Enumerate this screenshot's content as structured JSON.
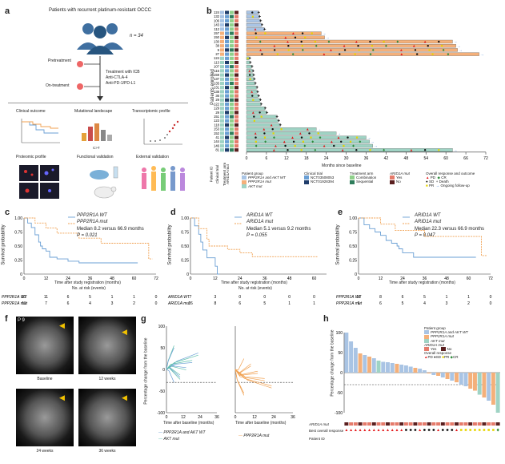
{
  "panels": {
    "a": {
      "label": "a",
      "cohort_text": "Patients with recurrent platinum-resistant OCCC",
      "n_text": "n = 34",
      "pretreatment": "Pretreatment",
      "on_treatment": "On-treatment",
      "treatment_text": [
        "Treatment with ICB",
        "Anti-CTLA-4",
        "Anti-PD-1/PD-L1"
      ],
      "boxes": [
        "Clinical outcome",
        "Mutational landscape",
        "Transcriptomic profile",
        "Proteomic profile",
        "Functional validation",
        "External validation"
      ],
      "mutational_label": "C>T"
    },
    "b": {
      "label": "b",
      "y_axis_title": "Patients enrolled",
      "x_axis_title": "Months since baseline",
      "x_ticks": [
        "0",
        "6",
        "12",
        "18",
        "24",
        "30",
        "36",
        "42",
        "48",
        "54",
        "60",
        "66",
        "72"
      ],
      "column_labels": [
        "Patient ID",
        "Clinical trial",
        "Treatment arm",
        "ARID1A mut"
      ],
      "patients": [
        {
          "id": "124",
          "months": 3.5,
          "group": "wt"
        },
        {
          "id": "132",
          "months": 3.8,
          "group": "wt"
        },
        {
          "id": "106",
          "months": 4.1,
          "group": "wt"
        },
        {
          "id": "143",
          "months": 4.5,
          "group": "wt"
        },
        {
          "id": "112",
          "months": 5.3,
          "group": "wt"
        },
        {
          "id": "157",
          "months": 22.5,
          "group": "ppp"
        },
        {
          "id": "150",
          "months": 23.5,
          "group": "ppp"
        },
        {
          "id": "130",
          "months": 62,
          "group": "ppp"
        },
        {
          "id": "38",
          "months": 63,
          "group": "ppp"
        },
        {
          "id": "9",
          "months": 63.5,
          "group": "ppp"
        },
        {
          "id": "27",
          "months": 70,
          "group": "ppp"
        },
        {
          "id": "124",
          "months": 0.8,
          "group": "akt"
        },
        {
          "id": "113",
          "months": 1.0,
          "group": "akt"
        },
        {
          "id": "107",
          "months": 1.5,
          "group": "akt"
        },
        {
          "id": "115",
          "months": 1.8,
          "group": "akt"
        },
        {
          "id": "159",
          "months": 2.0,
          "group": "akt"
        },
        {
          "id": "137",
          "months": 2.2,
          "group": "akt"
        },
        {
          "id": "135",
          "months": 2.5,
          "group": "akt"
        },
        {
          "id": "131",
          "months": 3.0,
          "group": "akt"
        },
        {
          "id": "138",
          "months": 3.2,
          "group": "akt"
        },
        {
          "id": "36",
          "months": 3.5,
          "group": "akt"
        },
        {
          "id": "29",
          "months": 4.0,
          "group": "akt"
        },
        {
          "id": "122",
          "months": 4.3,
          "group": "akt"
        },
        {
          "id": "129",
          "months": 5.5,
          "group": "akt"
        },
        {
          "id": "29",
          "months": 6.0,
          "group": "akt"
        },
        {
          "id": "151",
          "months": 9.0,
          "group": "akt"
        },
        {
          "id": "123",
          "months": 9.5,
          "group": "akt"
        },
        {
          "id": "118",
          "months": 10.0,
          "group": "akt"
        },
        {
          "id": "153",
          "months": 21.0,
          "group": "akt"
        },
        {
          "id": "152",
          "months": 27.0,
          "group": "akt"
        },
        {
          "id": "41",
          "months": 36.0,
          "group": "akt"
        },
        {
          "id": "144",
          "months": 37.0,
          "group": "akt"
        },
        {
          "id": "146",
          "months": 38.0,
          "group": "akt"
        },
        {
          "id": "81",
          "months": 62.0,
          "group": "akt"
        }
      ],
      "legend": {
        "patient_group_title": "Patient group",
        "patient_groups": [
          "PPP2R1A and AKT WT",
          "PPP2R1A mut",
          "AKT mut"
        ],
        "clinical_trial_title": "Clinical trial",
        "clinical_trials": [
          "NCT03508053",
          "NCT01928394"
        ],
        "treatment_arm_title": "Treatment arm",
        "treatment_arms": [
          "Combination",
          "Sequential"
        ],
        "arid_title": "ARID1A mut",
        "arid": [
          "Yes",
          "No"
        ],
        "response_title": "Overall response and outcome",
        "responses": [
          "PD",
          "SD",
          "PR",
          "CR",
          "Death",
          "Ongoing follow-up"
        ]
      },
      "colors": {
        "wt": "#a9c4e4",
        "ppp": "#f4b07a",
        "akt": "#9fd3c4",
        "pd": "#e41a1c",
        "sd": "#111111",
        "pr": "#e6d400",
        "cr": "#2e8b3a"
      }
    },
    "c": {
      "label": "c",
      "legend": [
        "PPP2R1A WT",
        "PPP2R1A mut"
      ],
      "stats": [
        "Median 8.2 versus 66.9 months",
        "P = 0.021"
      ],
      "y_axis_title": "Survival probability",
      "x_axis_title": "Time after study registration (months)",
      "risk_title": "No. at risk (events)",
      "x_ticks": [
        "0",
        "12",
        "24",
        "36",
        "48",
        "60",
        "72"
      ],
      "y_ticks": [
        "1.00",
        "0.75",
        "0.50",
        "0.25",
        "0"
      ],
      "risk_rows": [
        {
          "name": "PPP2R1A WT",
          "values": [
            "23",
            "11",
            "6",
            "5",
            "1",
            "1",
            "0"
          ]
        },
        {
          "name": "PPP2R1A mut",
          "values": [
            "11",
            "7",
            "6",
            "4",
            "3",
            "2",
            "0"
          ]
        }
      ]
    },
    "d": {
      "label": "d",
      "legend": [
        "ARID1A WT",
        "ARID1A mut"
      ],
      "stats": [
        "Median 5.1 versus 9.2 months",
        "P = 0.055"
      ],
      "y_axis_title": "Survival probability",
      "x_axis_title": "Time after study registration (months)",
      "risk_title": "No. at risk (events)",
      "x_ticks": [
        "0",
        "12",
        "24",
        "36",
        "48",
        "60"
      ],
      "y_ticks": [
        "1.00",
        "0.75",
        "0.50",
        "0.25",
        "0"
      ],
      "risk_rows": [
        {
          "name": "ARID1A WT",
          "values": [
            "7",
            "3",
            "0",
            "0",
            "0",
            "0"
          ]
        },
        {
          "name": "ARID1A mut",
          "values": [
            "16",
            "8",
            "6",
            "5",
            "1",
            "1"
          ]
        }
      ]
    },
    "e": {
      "label": "e",
      "legend": [
        "ARID1A WT",
        "ARID1A mut"
      ],
      "stats": [
        "Median 22.3 versus 66.9 months",
        "P = 0.047"
      ],
      "y_axis_title": "Survival probability",
      "x_axis_title": "Time after study registration (months)",
      "x_ticks": [
        "0",
        "12",
        "24",
        "36",
        "48",
        "60",
        "72"
      ],
      "y_ticks": [
        "1.00",
        "0.75",
        "0.50",
        "0.25",
        "0"
      ],
      "risk_rows": [
        {
          "name": "PPP2R1A WT",
          "values": [
            "16",
            "8",
            "6",
            "5",
            "1",
            "1",
            "0"
          ]
        },
        {
          "name": "PPP2R1A mut",
          "values": [
            "9",
            "6",
            "5",
            "4",
            "3",
            "2",
            "0"
          ]
        }
      ]
    },
    "f": {
      "label": "f",
      "case_id": "P 9",
      "captions": [
        "Baseline",
        "12 weeks",
        "24 weeks",
        "36 weeks"
      ]
    },
    "g": {
      "label": "g",
      "y_axis_title": "Percentage change from the baseline",
      "x_axis_title": "Time after baseline (months)",
      "left_x_ticks": [
        "0",
        "12",
        "24",
        "36"
      ],
      "right_x_ticks": [
        "0",
        "12",
        "24",
        "36"
      ],
      "y_ticks": [
        "100",
        "50",
        "0",
        "-50",
        "-100"
      ],
      "legend_left": [
        "PPP2R1A and AKT WT",
        "AKT mut"
      ],
      "legend_right": [
        "PPP2R1A mut"
      ]
    },
    "h": {
      "label": "h",
      "y_axis_title": "Percentage change from the baseline",
      "y_ticks": [
        "100",
        "50",
        "0",
        "-50",
        "-100"
      ],
      "legend": {
        "patient_group_title": "Patient group",
        "patient_groups": [
          "PPP2R1A and AKT WT",
          "PPP2R1A mut",
          "AKT mut"
        ],
        "arid_title": "ARID1A mut",
        "arid": [
          "Yes",
          "No"
        ],
        "response_title": "Overall response",
        "responses": [
          "PD",
          "SD",
          "PR",
          "CR"
        ]
      },
      "row_labels": [
        "ARID1A mut",
        "Best overall response",
        "Patient ID"
      ]
    }
  },
  "chart_data": [
    {
      "panel": "c",
      "type": "line",
      "series": [
        {
          "name": "PPP2R1A WT",
          "x": [
            0,
            2,
            4,
            6,
            8,
            9,
            10,
            12,
            14,
            18,
            24,
            30,
            36,
            50,
            58,
            62
          ],
          "y": [
            1,
            0.91,
            0.83,
            0.7,
            0.57,
            0.5,
            0.45,
            0.41,
            0.3,
            0.27,
            0.23,
            0.2,
            0.2,
            0.2,
            0.2,
            0.2
          ]
        },
        {
          "name": "PPP2R1A mut",
          "x": [
            0,
            6,
            12,
            18,
            24,
            30,
            36,
            42,
            48,
            60,
            66,
            68,
            70
          ],
          "y": [
            1,
            0.91,
            0.82,
            0.73,
            0.73,
            0.64,
            0.64,
            0.55,
            0.55,
            0.55,
            0.55,
            0.27,
            0.27
          ]
        }
      ],
      "xlabel": "Time after study registration (months)",
      "ylabel": "Survival probability",
      "xlim": [
        0,
        72
      ],
      "ylim": [
        0,
        1
      ]
    },
    {
      "panel": "d",
      "type": "line",
      "series": [
        {
          "name": "ARID1A WT",
          "x": [
            0,
            2,
            4,
            5,
            6,
            8,
            10,
            12,
            13,
            14
          ],
          "y": [
            1,
            0.86,
            0.71,
            0.57,
            0.43,
            0.29,
            0.29,
            0.14,
            0,
            0
          ]
        },
        {
          "name": "ARID1A mut",
          "x": [
            0,
            4,
            8,
            9,
            12,
            18,
            24,
            30,
            36,
            48,
            60,
            62
          ],
          "y": [
            1,
            0.81,
            0.62,
            0.5,
            0.5,
            0.44,
            0.38,
            0.31,
            0.31,
            0.31,
            0.31,
            0.31
          ]
        }
      ],
      "xlabel": "Time after study registration (months)",
      "ylabel": "Survival probability",
      "xlim": [
        0,
        66
      ],
      "ylim": [
        0,
        1
      ]
    },
    {
      "panel": "e",
      "type": "line",
      "series": [
        {
          "name": "ARID1A WT",
          "x": [
            0,
            3,
            6,
            9,
            12,
            15,
            18,
            21,
            22,
            24,
            30,
            36,
            48,
            60,
            64
          ],
          "y": [
            1,
            0.88,
            0.81,
            0.75,
            0.69,
            0.6,
            0.55,
            0.5,
            0.45,
            0.38,
            0.3,
            0.3,
            0.3,
            0.3,
            0.3
          ]
        },
        {
          "name": "ARID1A mut",
          "x": [
            0,
            12,
            20,
            24,
            36,
            48,
            60,
            66,
            67,
            70
          ],
          "y": [
            1,
            0.89,
            0.78,
            0.78,
            0.67,
            0.67,
            0.67,
            0.67,
            0.33,
            0.33
          ]
        }
      ],
      "xlabel": "Time after study registration (months)",
      "ylabel": "Survival probability",
      "xlim": [
        0,
        72
      ],
      "ylim": [
        0,
        1
      ]
    },
    {
      "panel": "h",
      "type": "bar",
      "values": [
        100,
        78,
        62,
        48,
        44,
        40,
        36,
        30,
        27,
        26,
        24,
        22,
        20,
        18,
        15,
        12,
        10,
        6,
        -2,
        -6,
        -8,
        -12,
        -16,
        -20,
        -24,
        -30,
        -34,
        -40,
        -45,
        -55,
        -62,
        -70,
        -80,
        -100
      ],
      "groups": [
        "wt",
        "wt",
        "wt",
        "ppp",
        "wt",
        "ppp",
        "wt",
        "akt",
        "wt",
        "wt",
        "wt",
        "ppp",
        "wt",
        "wt",
        "wt",
        "ppp",
        "wt",
        "wt",
        "ppp",
        "wt",
        "ppp",
        "wt",
        "ppp",
        "wt",
        "ppp",
        "wt",
        "wt",
        "ppp",
        "ppp",
        "akt",
        "ppp",
        "wt",
        "ppp",
        "akt"
      ],
      "ylabel": "Percentage change from the baseline",
      "ylim": [
        -100,
        100
      ]
    }
  ]
}
